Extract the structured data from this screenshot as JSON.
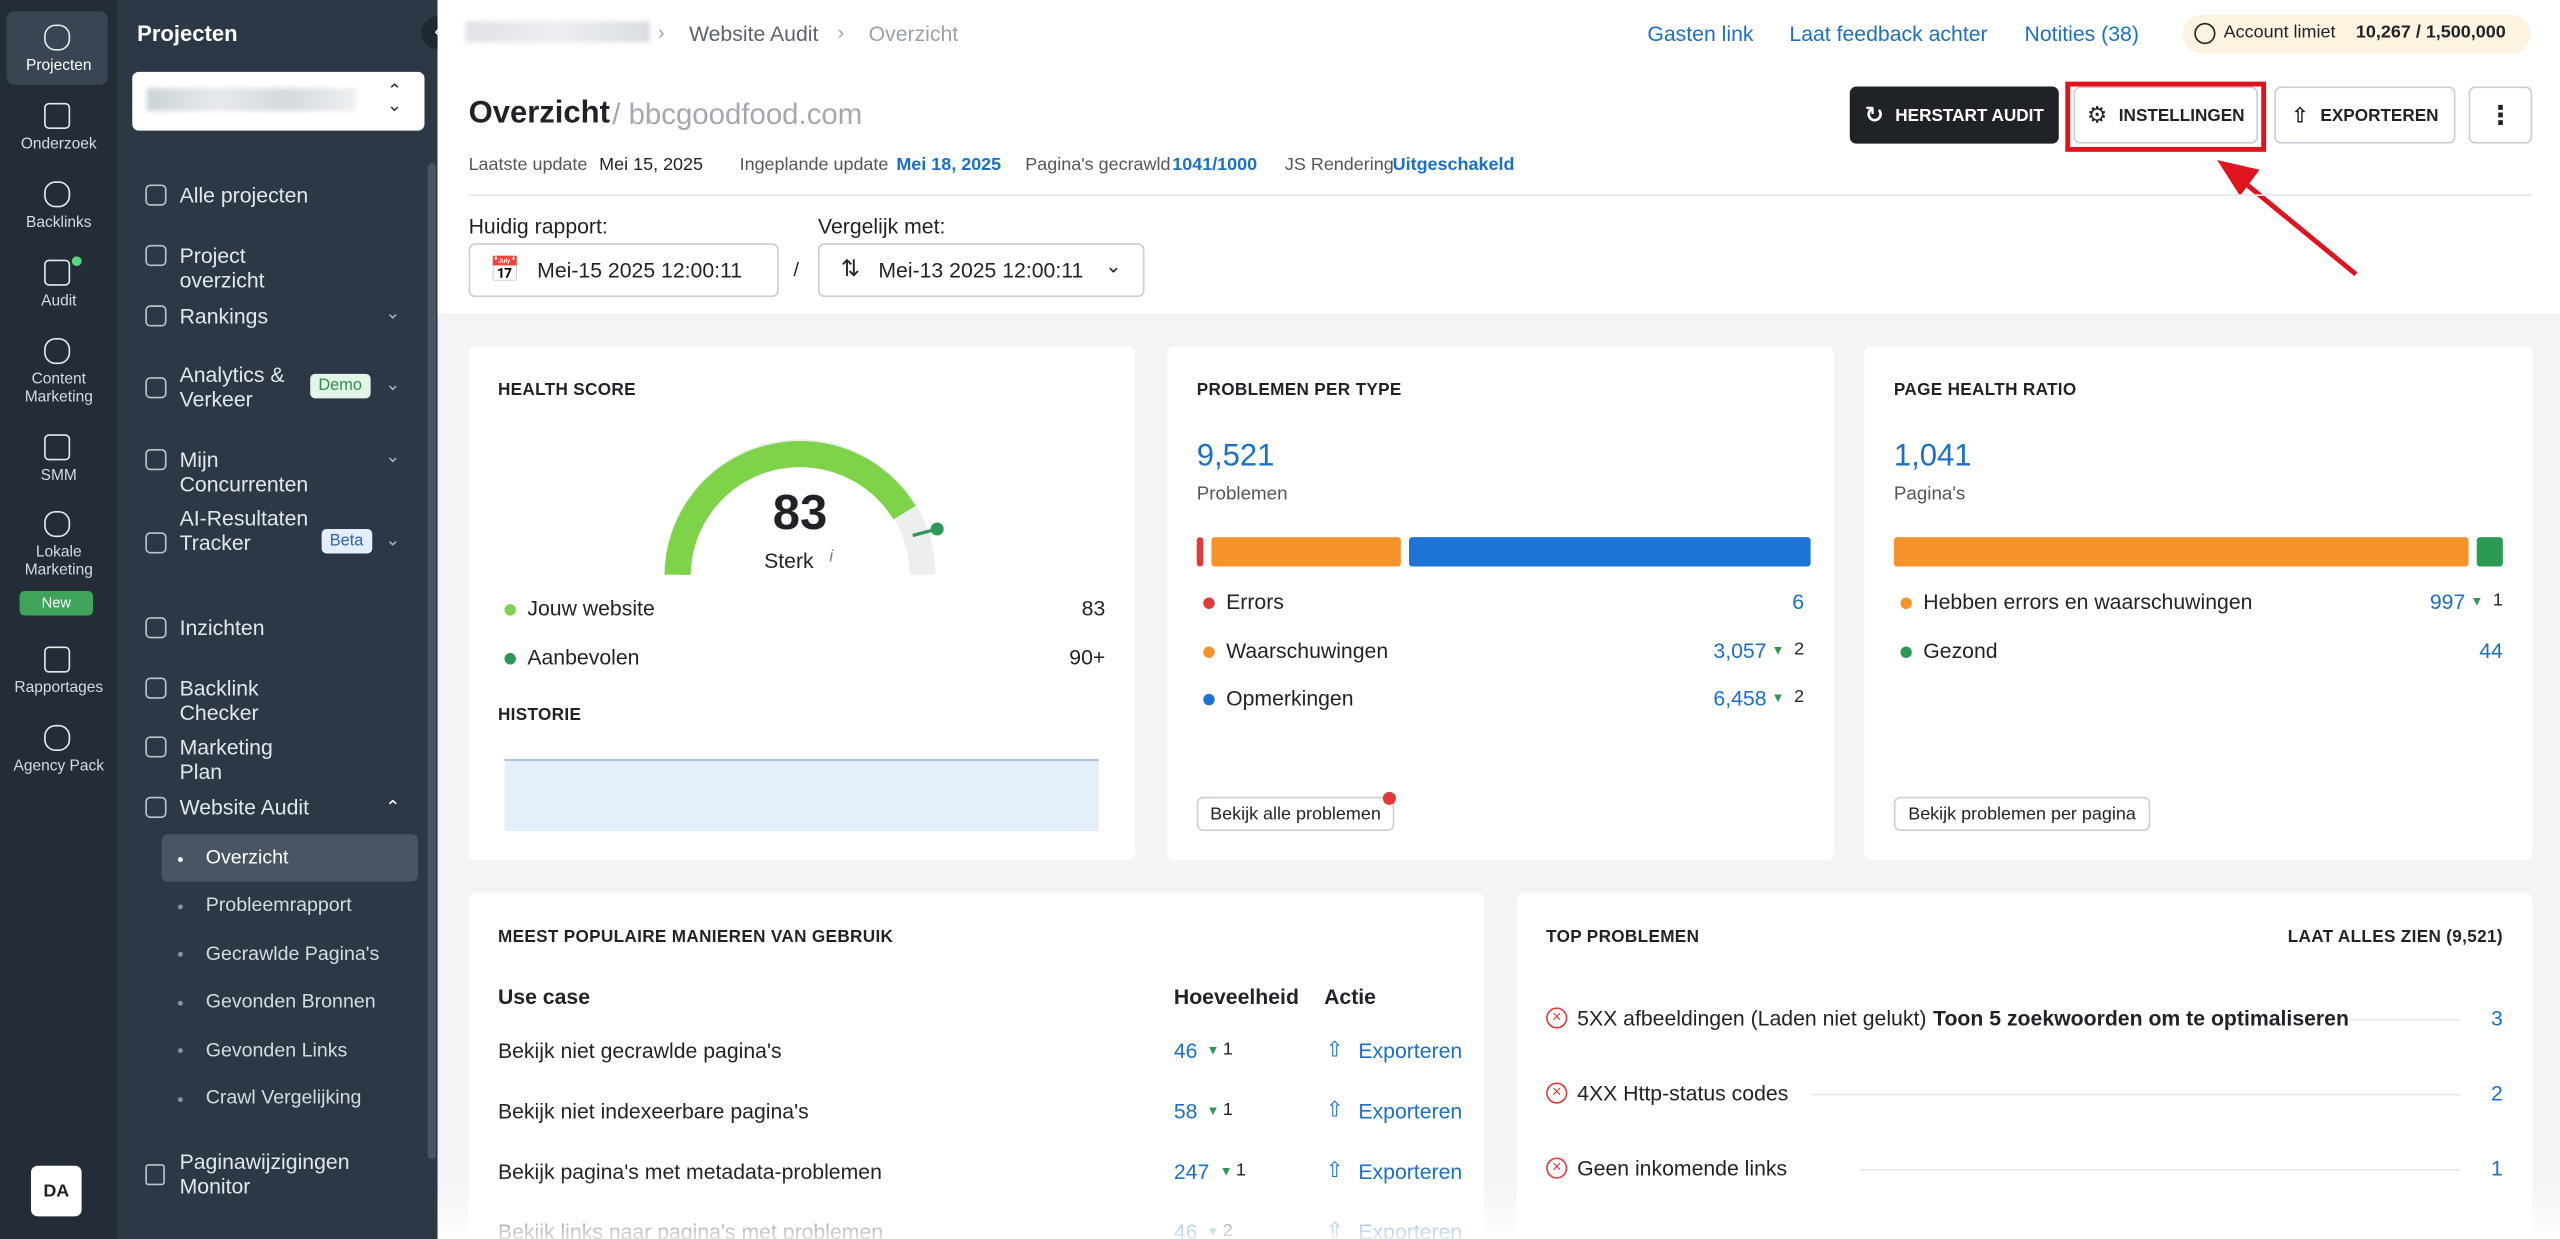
{
  "sidebar_icons": [
    {
      "label": "Projecten"
    },
    {
      "label": "Onderzoek"
    },
    {
      "label": "Backlinks"
    },
    {
      "label": "Audit"
    },
    {
      "label": "Content Marketing"
    },
    {
      "label": "SMM"
    },
    {
      "label": "Lokale Marketing",
      "badge": "New"
    },
    {
      "label": "Rapportages"
    },
    {
      "label": "Agency Pack"
    }
  ],
  "avatar": "DA",
  "nav": {
    "title": "Projecten",
    "items": [
      {
        "label": "Alle projecten"
      },
      {
        "label": "Project overzicht"
      },
      {
        "label": "Rankings"
      },
      {
        "label": "Analytics & Verkeer",
        "badge": "Demo"
      },
      {
        "label": "Mijn Concurrenten"
      },
      {
        "label": "AI-Resultaten Tracker",
        "badge": "Beta"
      },
      {
        "label": "Inzichten"
      },
      {
        "label": "Backlink Checker"
      },
      {
        "label": "Marketing Plan"
      },
      {
        "label": "Website Audit"
      }
    ],
    "subitems": [
      "Overzicht",
      "Probleemrapport",
      "Gecrawlde Pagina's",
      "Gevonden Bronnen",
      "Gevonden Links",
      "Crawl Vergelijking"
    ],
    "bottom": "Paginawijzigingen Monitor"
  },
  "breadcrumb": [
    "Website Audit",
    "Overzicht"
  ],
  "top_links": [
    "Gasten link",
    "Laat feedback achter",
    "Notities (38)"
  ],
  "account": {
    "label": "Account limiet",
    "value": "10,267 / 1,500,000"
  },
  "header": {
    "title": "Overzicht",
    "domain": "/ bbcgoodfood.com",
    "buttons": [
      "HERSTART AUDIT",
      "INSTELLINGEN",
      "EXPORTEREN"
    ],
    "meta": [
      {
        "label": "Laatste update",
        "value": "Mei 15, 2025"
      },
      {
        "label": "Ingeplande update",
        "value": "Mei 18, 2025"
      },
      {
        "label": "Pagina's gecrawld",
        "value": "1041/1000"
      },
      {
        "label": "JS Rendering",
        "value": "Uitgeschakeld"
      }
    ]
  },
  "report": {
    "current_label": "Huidig rapport:",
    "current": "Mei-15 2025 12:00:11",
    "compare_label": "Vergelijk met:",
    "compare": "Mei-13 2025 12:00:11"
  },
  "health": {
    "title": "HEALTH SCORE",
    "score": 83,
    "score_label": "Sterk",
    "rows": [
      {
        "label": "Jouw website",
        "value": "83"
      },
      {
        "label": "Aanbevolen",
        "value": "90+"
      }
    ],
    "history": "HISTORIE"
  },
  "problems": {
    "title": "PROBLEMEN PER TYPE",
    "total": "9,521",
    "total_label": "Problemen",
    "items": [
      {
        "label": "Errors",
        "value": 6,
        "value_label": "6"
      },
      {
        "label": "Waarschuwingen",
        "value": 3057,
        "value_label": "3,057",
        "change": "2"
      },
      {
        "label": "Opmerkingen",
        "value": 6458,
        "value_label": "6,458",
        "change": "2"
      }
    ],
    "button": "Bekijk alle problemen"
  },
  "page_health": {
    "title": "PAGE HEALTH RATIO",
    "total": "1,041",
    "total_label": "Pagina's",
    "items": [
      {
        "label": "Hebben errors en waarschuwingen",
        "value": 997,
        "value_label": "997",
        "change": "1"
      },
      {
        "label": "Gezond",
        "value": 44,
        "value_label": "44"
      }
    ],
    "button": "Bekijk problemen per pagina"
  },
  "use_cases": {
    "title": "MEEST POPULAIRE MANIEREN VAN GEBRUIK",
    "columns": [
      "Use case",
      "Hoeveelheid",
      "Actie"
    ],
    "rows": [
      {
        "label": "Bekijk niet gecrawlde pagina's",
        "value": "46",
        "change": "1",
        "action": "Exporteren"
      },
      {
        "label": "Bekijk niet indexeerbare pagina's",
        "value": "58",
        "change": "1",
        "action": "Exporteren"
      },
      {
        "label": "Bekijk pagina's met metadata-problemen",
        "value": "247",
        "change": "1",
        "action": "Exporteren"
      },
      {
        "label": "Bekijk links naar pagina's met problemen",
        "value": "46",
        "change": "2",
        "action": "Exporteren"
      }
    ]
  },
  "top_problems": {
    "title": "TOP PROBLEMEN",
    "see_all": "LAAT ALLES ZIEN (9,521)",
    "items": [
      {
        "label": "5XX afbeeldingen (Laden niet gelukt)",
        "extra": "Toon 5 zoekwoorden om te optimaliseren",
        "value": "3"
      },
      {
        "label": "4XX Http-status codes",
        "value": "2"
      },
      {
        "label": "Geen inkomende links",
        "value": "1"
      }
    ]
  }
}
